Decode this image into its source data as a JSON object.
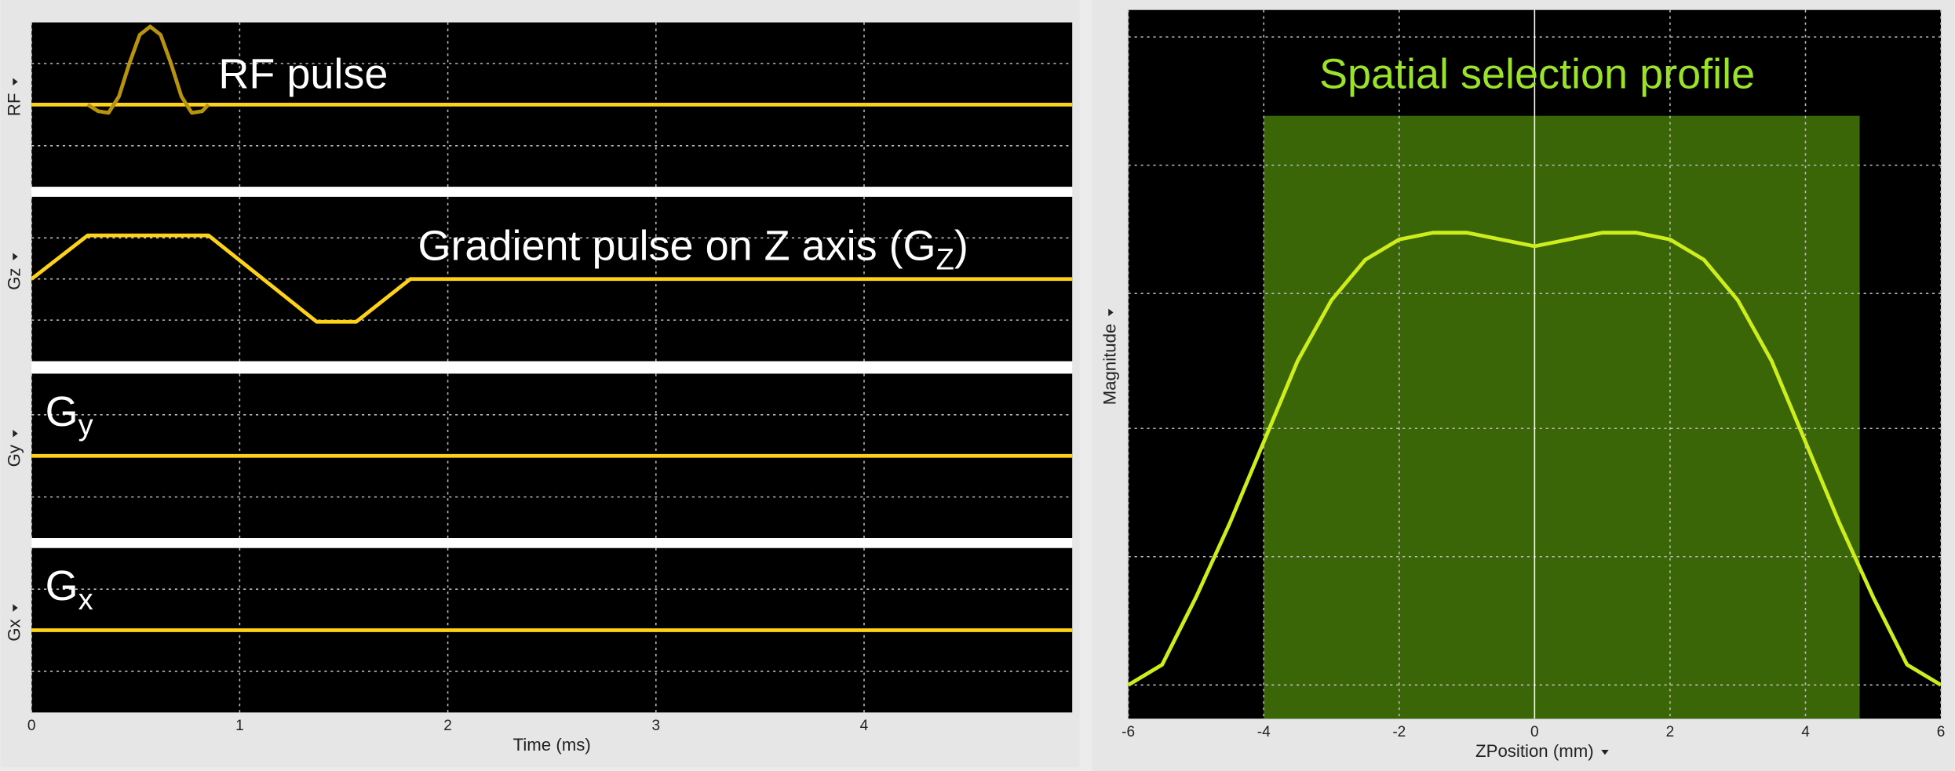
{
  "chart_data": [
    {
      "type": "line",
      "ylabel": "RF",
      "xlim": [
        0,
        5
      ],
      "ylim": [
        -1,
        1
      ],
      "xticks": [
        0,
        1,
        2,
        3,
        4
      ],
      "yticks": [
        -0.5,
        0,
        0.5
      ],
      "grid": true,
      "annotation": {
        "text": "RF pulse"
      },
      "series": [
        {
          "color": "#ffd21a",
          "x": [
            0,
            5
          ],
          "values": [
            0,
            0
          ]
        },
        {
          "color": "#b8930e",
          "x": [
            0.27,
            0.32,
            0.37,
            0.42,
            0.47,
            0.52,
            0.57,
            0.62,
            0.67,
            0.72,
            0.77,
            0.82,
            0.85
          ],
          "values": [
            0,
            -0.08,
            -0.1,
            0.1,
            0.5,
            0.85,
            0.95,
            0.85,
            0.5,
            0.1,
            -0.1,
            -0.08,
            0
          ]
        }
      ]
    },
    {
      "type": "line",
      "ylabel": "Gz",
      "xlim": [
        0,
        5
      ],
      "ylim": [
        -1,
        1
      ],
      "xticks": [
        0,
        1,
        2,
        3,
        4
      ],
      "yticks": [
        -0.5,
        0,
        0.5
      ],
      "grid": true,
      "annotation": {
        "text": "Gradient pulse on Z axis (G",
        "sub": "Z",
        "tail": ")"
      },
      "series": [
        {
          "color": "#ffd21a",
          "x": [
            0,
            0.27,
            0.85,
            1.37,
            1.56,
            1.82,
            5
          ],
          "values": [
            0,
            0.53,
            0.53,
            -0.52,
            -0.52,
            0,
            0
          ]
        }
      ]
    },
    {
      "type": "line",
      "ylabel": "Gy",
      "xlim": [
        0,
        5
      ],
      "ylim": [
        -1,
        1
      ],
      "xticks": [
        0,
        1,
        2,
        3,
        4
      ],
      "yticks": [
        -0.5,
        0,
        0.5
      ],
      "grid": true,
      "annotation": {
        "text": "G",
        "sub": "y"
      },
      "series": [
        {
          "color": "#ffd21a",
          "x": [
            0,
            5
          ],
          "values": [
            0,
            0
          ]
        }
      ]
    },
    {
      "type": "line",
      "ylabel": "Gx",
      "xlabel": "Time (ms)",
      "xlim": [
        0,
        5
      ],
      "ylim": [
        -1,
        1
      ],
      "xticks": [
        0,
        1,
        2,
        3,
        4
      ],
      "yticks": [
        -0.5,
        0,
        0.5
      ],
      "grid": true,
      "annotation": {
        "text": "G",
        "sub": "x"
      },
      "series": [
        {
          "color": "#ffd21a",
          "x": [
            0,
            5
          ],
          "values": [
            0,
            0
          ]
        }
      ]
    },
    {
      "type": "line",
      "title": "Spatial selection profile",
      "ylabel": "Magnitude",
      "xlabel": "ZPosition (mm)",
      "xlim": [
        -6,
        6
      ],
      "ylim": [
        -0.05,
        1
      ],
      "xticks": [
        -6,
        -4,
        -2,
        0,
        2,
        4,
        6
      ],
      "yticks": [
        0,
        0.19,
        0.38,
        0.58,
        0.77,
        0.96
      ],
      "grid": true,
      "band": {
        "range": [
          -4,
          4.8
        ],
        "color": "#3b6608"
      },
      "series": [
        {
          "color": "#cdee1a",
          "x": [
            -6,
            -5.5,
            -5,
            -4.5,
            -4,
            -3.5,
            -3,
            -2.5,
            -2,
            -1.5,
            -1,
            -0.5,
            0,
            0.5,
            1,
            1.5,
            2,
            2.5,
            3,
            3.5,
            4,
            4.5,
            5,
            5.5,
            6
          ],
          "values": [
            0,
            0.03,
            0.13,
            0.24,
            0.36,
            0.48,
            0.57,
            0.63,
            0.66,
            0.67,
            0.67,
            0.66,
            0.65,
            0.66,
            0.67,
            0.67,
            0.66,
            0.63,
            0.57,
            0.48,
            0.36,
            0.24,
            0.13,
            0.03,
            0
          ]
        }
      ]
    }
  ]
}
